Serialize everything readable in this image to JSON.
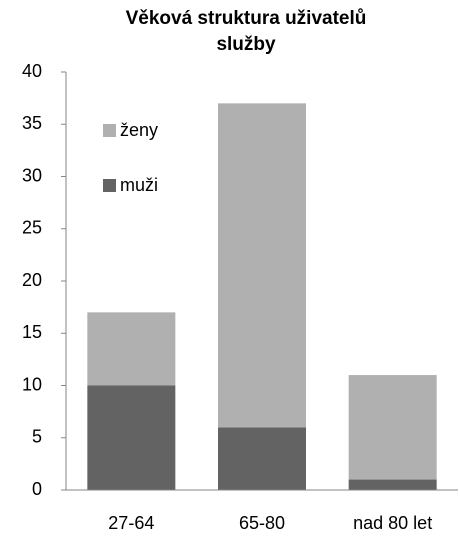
{
  "chart_data": {
    "type": "bar",
    "stacked": true,
    "title": "Věková struktura uživatelů služby",
    "categories": [
      "27-64",
      "65-80",
      "nad 80 let"
    ],
    "series": [
      {
        "name": "muži",
        "color": "#636363",
        "values": [
          10,
          6,
          1
        ]
      },
      {
        "name": "ženy",
        "color": "#b0b0b0",
        "values": [
          7,
          31,
          10
        ]
      }
    ],
    "ylim": [
      0,
      40
    ],
    "yticks": [
      0,
      5,
      10,
      15,
      20,
      25,
      30,
      35,
      40
    ],
    "grid": false,
    "legend": "upper left"
  }
}
